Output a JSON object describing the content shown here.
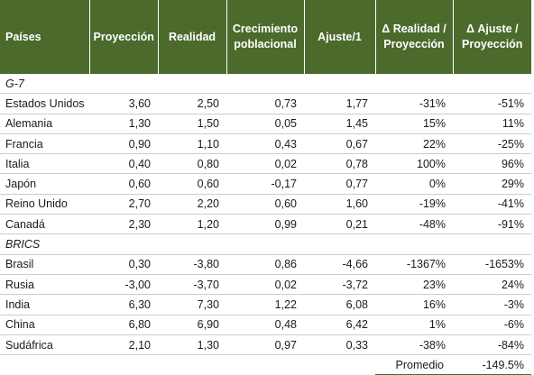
{
  "headers": [
    "Países",
    "Proyección",
    "Realidad",
    "Crecimiento poblacional",
    "Ajuste/1",
    "Δ Realidad / Proyección",
    "Δ Ajuste / Proyección"
  ],
  "groups": [
    {
      "name": "G-7",
      "rows": [
        [
          "Estados Unidos",
          "3,60",
          "2,50",
          "0,73",
          "1,77",
          "-31%",
          "-51%"
        ],
        [
          "Alemania",
          "1,30",
          "1,50",
          "0,05",
          "1,45",
          "15%",
          "11%"
        ],
        [
          "Francia",
          "0,90",
          "1,10",
          "0,43",
          "0,67",
          "22%",
          "-25%"
        ],
        [
          "Italia",
          "0,40",
          "0,80",
          "0,02",
          "0,78",
          "100%",
          "96%"
        ],
        [
          "Japón",
          "0,60",
          "0,60",
          "-0,17",
          "0,77",
          "0%",
          "29%"
        ],
        [
          "Reino Unido",
          "2,70",
          "2,20",
          "0,60",
          "1,60",
          "-19%",
          "-41%"
        ],
        [
          "Canadá",
          "2,30",
          "1,20",
          "0,99",
          "0,21",
          "-48%",
          "-91%"
        ]
      ]
    },
    {
      "name": "BRICS",
      "rows": [
        [
          "Brasil",
          "0,30",
          "-3,80",
          "0,86",
          "-4,66",
          "-1367%",
          "-1653%"
        ],
        [
          "Rusia",
          "-3,00",
          "-3,70",
          "0,02",
          "-3,72",
          "23%",
          "24%"
        ],
        [
          "India",
          "6,30",
          "7,30",
          "1,22",
          "6,08",
          "16%",
          "-3%"
        ],
        [
          "China",
          "6,80",
          "6,90",
          "0,48",
          "6,42",
          "1%",
          "-6%"
        ],
        [
          "Sudáfrica",
          "2,10",
          "1,30",
          "0,97",
          "0,33",
          "-38%",
          "-84%"
        ]
      ]
    }
  ],
  "footer": {
    "label": "Promedio",
    "value": "-149.5%"
  },
  "colors": {
    "header_bg": "#4b6a2c",
    "header_text": "#ffffff",
    "row_border": "#c7d3b8"
  }
}
